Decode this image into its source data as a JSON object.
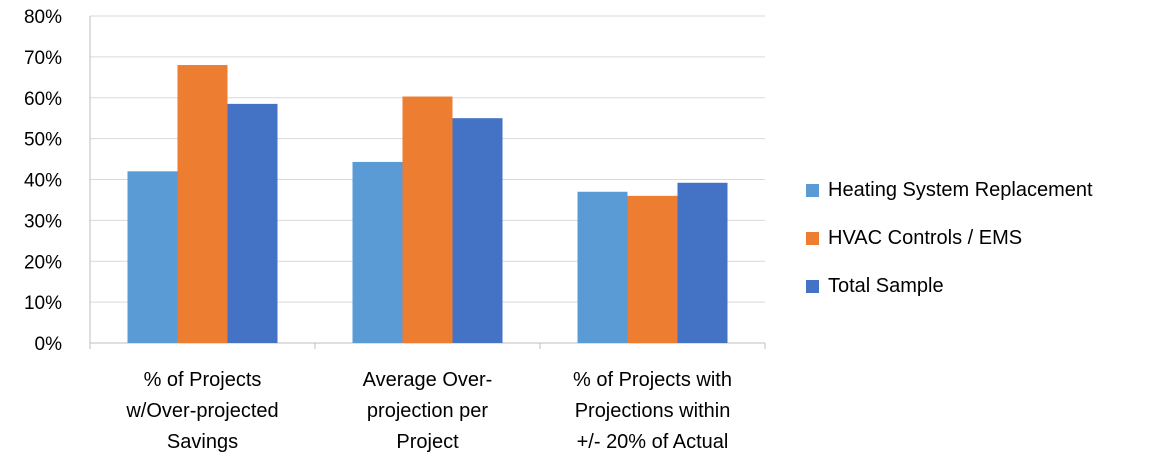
{
  "chart_data": {
    "type": "bar",
    "categories": [
      [
        "% of Projects",
        "w/Over-projected",
        "Savings"
      ],
      [
        "Average Over-",
        "projection per",
        "Project"
      ],
      [
        "% of Projects with",
        "Projections within",
        "+/- 20% of Actual"
      ]
    ],
    "series": [
      {
        "name": "Heating System Replacement",
        "color": "#5b9bd5",
        "values": [
          42,
          44.3,
          37
        ]
      },
      {
        "name": "HVAC Controls / EMS",
        "color": "#ed7d31",
        "values": [
          68,
          60.3,
          36
        ]
      },
      {
        "name": "Total Sample",
        "color": "#4472c4",
        "values": [
          58.5,
          55,
          39.2
        ]
      }
    ],
    "yticks": [
      "0%",
      "10%",
      "20%",
      "30%",
      "40%",
      "50%",
      "60%",
      "70%",
      "80%"
    ],
    "ylim": [
      0,
      80
    ],
    "grid": true,
    "legend": "right"
  }
}
